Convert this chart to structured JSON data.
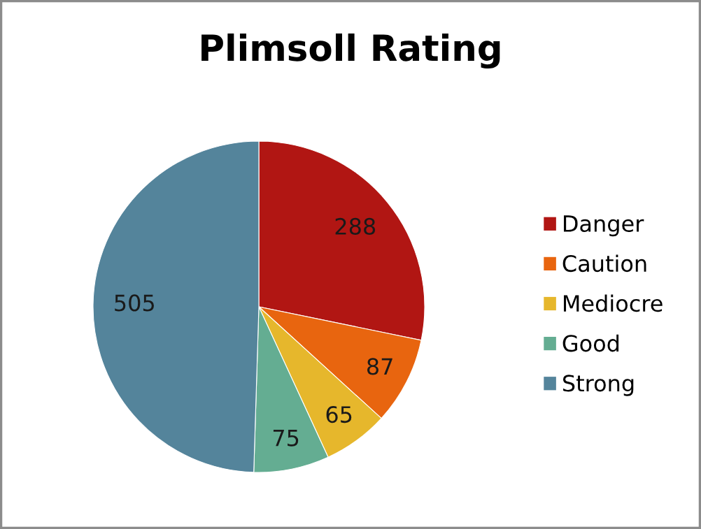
{
  "chart_data": {
    "type": "pie",
    "title": "Plimsoll Rating",
    "categories": [
      "Danger",
      "Caution",
      "Mediocre",
      "Good",
      "Strong"
    ],
    "values": [
      288,
      87,
      65,
      75,
      505
    ],
    "colors": [
      "#b11613",
      "#e8650f",
      "#e6b72c",
      "#64ad92",
      "#54849b"
    ],
    "data_labels": true,
    "legend": "right"
  }
}
